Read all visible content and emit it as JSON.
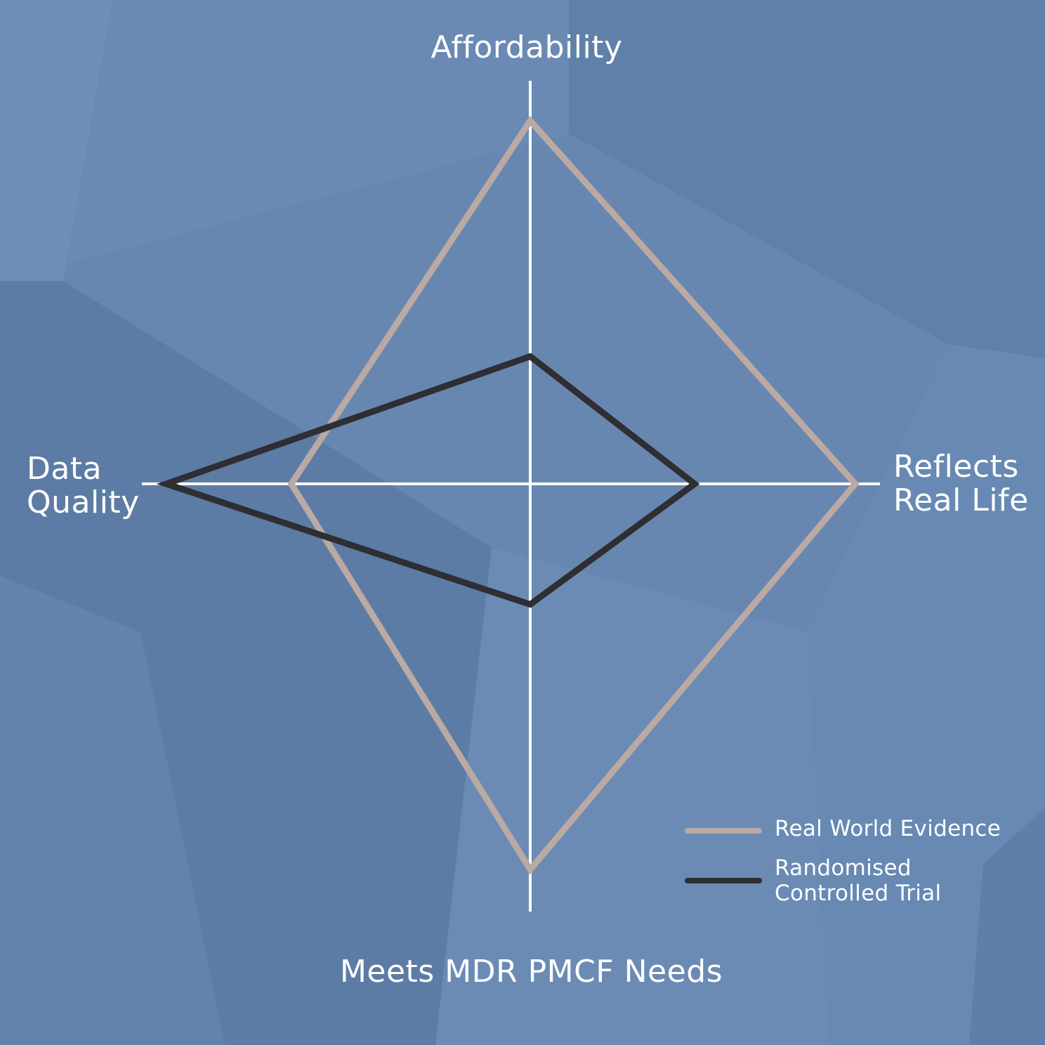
{
  "chart_data": {
    "type": "radar",
    "axes": [
      "Affordability",
      "Reflects Real Life",
      "Meets MDR PMCF Needs",
      "Data Quality"
    ],
    "scale_max": 10,
    "series": [
      {
        "name": "Real World Evidence",
        "color": "#bba9a3",
        "values": [
          9.4,
          8.7,
          9.6,
          6.3
        ]
      },
      {
        "name": "Randomised Controlled Trial",
        "color": "#2e2e33",
        "values": [
          3.3,
          4.4,
          3.0,
          9.6
        ]
      }
    ],
    "legend_position": "bottom-right"
  },
  "labels": {
    "top": "Affordability",
    "right": [
      "Reflects",
      "Real Life"
    ],
    "bottom": "Meets MDR PMCF Needs",
    "left": [
      "Data",
      "Quality"
    ]
  },
  "legend": [
    {
      "lines": [
        "Real World Evidence"
      ],
      "color": "#bba9a3"
    },
    {
      "lines": [
        "Randomised",
        "Controlled Trial"
      ],
      "color": "#2e2e33"
    }
  ],
  "colors": {
    "background": "#6887b0",
    "axis": "#ffffff"
  }
}
